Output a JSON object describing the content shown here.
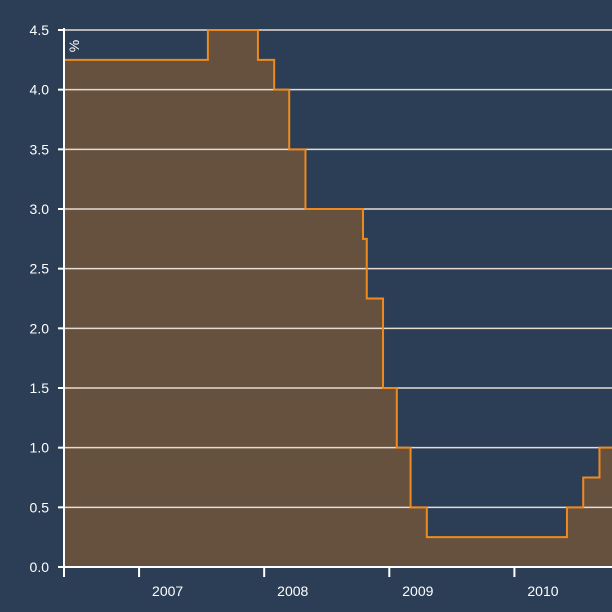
{
  "chart_data": {
    "type": "area",
    "step": true,
    "unit": "%",
    "x_unit": "year",
    "xlim": [
      2006.4,
      2010.78
    ],
    "ylim": [
      0,
      4.5
    ],
    "y_ticks": [
      "0.0",
      "0.5",
      "1.0",
      "1.5",
      "2.0",
      "2.5",
      "3.0",
      "3.5",
      "4.0",
      "4.5"
    ],
    "y_tick_values": [
      0,
      0.5,
      1.0,
      1.5,
      2.0,
      2.5,
      3.0,
      3.5,
      4.0,
      4.5
    ],
    "x_ticks": [
      "2007",
      "2008",
      "2009",
      "2010"
    ],
    "x_tick_values": [
      2007,
      2008,
      2009,
      2010
    ],
    "grid": "horizontal",
    "series": [
      {
        "points": [
          {
            "x": 2006.4,
            "y": 4.25
          },
          {
            "x": 2007.55,
            "y": 4.5
          },
          {
            "x": 2007.95,
            "y": 4.25
          },
          {
            "x": 2008.08,
            "y": 4.0
          },
          {
            "x": 2008.2,
            "y": 3.5
          },
          {
            "x": 2008.33,
            "y": 3.0
          },
          {
            "x": 2008.79,
            "y": 2.75
          },
          {
            "x": 2008.82,
            "y": 2.25
          },
          {
            "x": 2008.95,
            "y": 1.5
          },
          {
            "x": 2009.06,
            "y": 1.0
          },
          {
            "x": 2009.17,
            "y": 0.5
          },
          {
            "x": 2009.3,
            "y": 0.25
          },
          {
            "x": 2010.42,
            "y": 0.5
          },
          {
            "x": 2010.55,
            "y": 0.75
          },
          {
            "x": 2010.68,
            "y": 1.0
          }
        ]
      }
    ],
    "colors": {
      "background": "#2b3e56",
      "fill": "#66513f",
      "line": "#ef8a1c",
      "grid": "#e6dccf",
      "text": "#ffffff"
    }
  }
}
